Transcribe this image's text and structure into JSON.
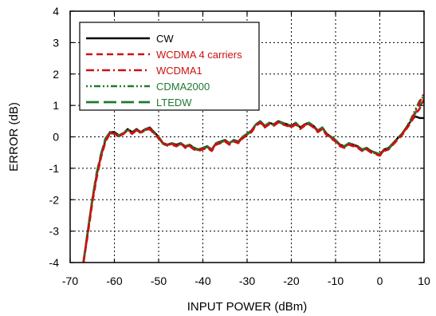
{
  "chart_data": {
    "type": "line",
    "title": "",
    "xlabel": "INPUT POWER (dBm)",
    "ylabel": "ERROR (dB)",
    "xlim": [
      -70,
      10
    ],
    "ylim": [
      -4,
      4
    ],
    "xticks": [
      "-70",
      "-60",
      "-50",
      "-40",
      "-30",
      "-20",
      "-10",
      "0",
      "10"
    ],
    "yticks": [
      "-4",
      "-3",
      "-2",
      "-1",
      "0",
      "1",
      "2",
      "3",
      "4"
    ],
    "grid": true,
    "legend_position": "top-left",
    "series": [
      {
        "name": "CW",
        "color": "#000000",
        "dash": "solid",
        "x": [
          -67,
          -66,
          -65,
          -64,
          -63,
          -62,
          -61,
          -60,
          -59,
          -58,
          -57,
          -56,
          -55,
          -54,
          -53,
          -52,
          -51,
          -50,
          -49,
          -48,
          -47,
          -46,
          -45,
          -44,
          -43,
          -42,
          -41,
          -40,
          -39,
          -38,
          -37,
          -36,
          -35,
          -34,
          -33,
          -32,
          -31,
          -30,
          -29,
          -28,
          -27,
          -26,
          -25,
          -24,
          -23,
          -22,
          -21,
          -20,
          -19,
          -18,
          -17,
          -16,
          -15,
          -14,
          -13,
          -12,
          -11,
          -10,
          -9,
          -8,
          -7,
          -6,
          -5,
          -4,
          -3,
          -2,
          -1,
          0,
          1,
          2,
          3,
          4,
          5,
          6,
          7,
          8,
          9,
          10
        ],
        "y": [
          -4.0,
          -3.0,
          -2.0,
          -1.2,
          -0.6,
          -0.1,
          0.15,
          0.15,
          0.05,
          0.1,
          0.25,
          0.15,
          0.25,
          0.15,
          0.25,
          0.3,
          0.15,
          0.0,
          -0.2,
          -0.25,
          -0.2,
          -0.25,
          -0.2,
          -0.3,
          -0.25,
          -0.35,
          -0.4,
          -0.35,
          -0.3,
          -0.4,
          -0.2,
          -0.15,
          -0.1,
          -0.2,
          -0.1,
          -0.15,
          0.0,
          0.1,
          0.2,
          0.4,
          0.5,
          0.35,
          0.45,
          0.4,
          0.5,
          0.45,
          0.4,
          0.35,
          0.45,
          0.3,
          0.4,
          0.45,
          0.35,
          0.2,
          0.3,
          0.1,
          0.0,
          -0.1,
          -0.25,
          -0.3,
          -0.2,
          -0.25,
          -0.3,
          -0.4,
          -0.35,
          -0.45,
          -0.5,
          -0.55,
          -0.4,
          -0.35,
          -0.2,
          -0.05,
          0.1,
          0.3,
          0.5,
          0.65,
          0.6,
          0.6
        ]
      },
      {
        "name": "WCDMA 4 carriers",
        "color": "#cc1111",
        "dash": "dashed",
        "x": [
          -67,
          -66,
          -65,
          -64,
          -63,
          -62,
          -61,
          -60,
          -59,
          -58,
          -57,
          -56,
          -55,
          -54,
          -53,
          -52,
          -51,
          -50,
          -49,
          -48,
          -47,
          -46,
          -45,
          -44,
          -43,
          -42,
          -41,
          -40,
          -39,
          -38,
          -37,
          -36,
          -35,
          -34,
          -33,
          -32,
          -31,
          -30,
          -29,
          -28,
          -27,
          -26,
          -25,
          -24,
          -23,
          -22,
          -21,
          -20,
          -19,
          -18,
          -17,
          -16,
          -15,
          -14,
          -13,
          -12,
          -11,
          -10,
          -9,
          -8,
          -7,
          -6,
          -5,
          -4,
          -3,
          -2,
          -1,
          0,
          1,
          2,
          3,
          4,
          5,
          6,
          7,
          8,
          9,
          10
        ],
        "y": [
          -4.0,
          -3.1,
          -2.1,
          -1.3,
          -0.65,
          -0.15,
          0.1,
          0.1,
          0.0,
          0.1,
          0.2,
          0.1,
          0.2,
          0.15,
          0.2,
          0.25,
          0.1,
          -0.05,
          -0.2,
          -0.25,
          -0.25,
          -0.3,
          -0.2,
          -0.35,
          -0.3,
          -0.4,
          -0.45,
          -0.4,
          -0.35,
          -0.45,
          -0.25,
          -0.2,
          -0.15,
          -0.25,
          -0.15,
          -0.2,
          -0.05,
          0.05,
          0.15,
          0.35,
          0.45,
          0.3,
          0.4,
          0.35,
          0.45,
          0.4,
          0.35,
          0.3,
          0.4,
          0.25,
          0.35,
          0.4,
          0.3,
          0.15,
          0.25,
          0.05,
          -0.05,
          -0.15,
          -0.3,
          -0.35,
          -0.25,
          -0.3,
          -0.35,
          -0.45,
          -0.4,
          -0.5,
          -0.55,
          -0.6,
          -0.45,
          -0.4,
          -0.25,
          -0.1,
          0.05,
          0.25,
          0.45,
          0.7,
          0.9,
          1.2
        ]
      },
      {
        "name": "WCDMA1",
        "color": "#cc1111",
        "dash": "dashdot",
        "x": [
          -67,
          -66,
          -65,
          -64,
          -63,
          -62,
          -61,
          -60,
          -59,
          -58,
          -57,
          -56,
          -55,
          -54,
          -53,
          -52,
          -51,
          -50,
          -49,
          -48,
          -47,
          -46,
          -45,
          -44,
          -43,
          -42,
          -41,
          -40,
          -39,
          -38,
          -37,
          -36,
          -35,
          -34,
          -33,
          -32,
          -31,
          -30,
          -29,
          -28,
          -27,
          -26,
          -25,
          -24,
          -23,
          -22,
          -21,
          -20,
          -19,
          -18,
          -17,
          -16,
          -15,
          -14,
          -13,
          -12,
          -11,
          -10,
          -9,
          -8,
          -7,
          -6,
          -5,
          -4,
          -3,
          -2,
          -1,
          0,
          1,
          2,
          3,
          4,
          5,
          6,
          7,
          8,
          9,
          10
        ],
        "y": [
          -4.0,
          -3.05,
          -2.05,
          -1.25,
          -0.6,
          -0.1,
          0.12,
          0.12,
          0.02,
          0.08,
          0.22,
          0.12,
          0.22,
          0.12,
          0.22,
          0.28,
          0.12,
          -0.02,
          -0.22,
          -0.28,
          -0.22,
          -0.28,
          -0.22,
          -0.32,
          -0.28,
          -0.38,
          -0.42,
          -0.38,
          -0.32,
          -0.42,
          -0.22,
          -0.18,
          -0.12,
          -0.22,
          -0.12,
          -0.18,
          -0.02,
          0.08,
          0.18,
          0.38,
          0.48,
          0.32,
          0.42,
          0.38,
          0.48,
          0.42,
          0.38,
          0.32,
          0.42,
          0.28,
          0.38,
          0.42,
          0.32,
          0.18,
          0.28,
          0.08,
          -0.02,
          -0.12,
          -0.28,
          -0.32,
          -0.22,
          -0.28,
          -0.32,
          -0.42,
          -0.38,
          -0.48,
          -0.52,
          -0.58,
          -0.42,
          -0.38,
          -0.22,
          -0.08,
          0.08,
          0.28,
          0.5,
          0.8,
          1.1,
          1.4
        ]
      },
      {
        "name": "CDMA2000",
        "color": "#1f7a2e",
        "dash": "dashdotdot",
        "x": [
          -67,
          -66,
          -65,
          -64,
          -63,
          -62,
          -61,
          -60,
          -59,
          -58,
          -57,
          -56,
          -55,
          -54,
          -53,
          -52,
          -51,
          -50,
          -49,
          -48,
          -47,
          -46,
          -45,
          -44,
          -43,
          -42,
          -41,
          -40,
          -39,
          -38,
          -37,
          -36,
          -35,
          -34,
          -33,
          -32,
          -31,
          -30,
          -29,
          -28,
          -27,
          -26,
          -25,
          -24,
          -23,
          -22,
          -21,
          -20,
          -19,
          -18,
          -17,
          -16,
          -15,
          -14,
          -13,
          -12,
          -11,
          -10,
          -9,
          -8,
          -7,
          -6,
          -5,
          -4,
          -3,
          -2,
          -1,
          0,
          1,
          2,
          3,
          4,
          5,
          6,
          7,
          8,
          9,
          10
        ],
        "y": [
          -4.0,
          -3.0,
          -2.0,
          -1.2,
          -0.55,
          -0.05,
          0.15,
          0.12,
          0.05,
          0.12,
          0.25,
          0.12,
          0.25,
          0.15,
          0.25,
          0.28,
          0.15,
          0.0,
          -0.2,
          -0.25,
          -0.2,
          -0.28,
          -0.2,
          -0.3,
          -0.25,
          -0.35,
          -0.4,
          -0.35,
          -0.3,
          -0.4,
          -0.2,
          -0.15,
          -0.1,
          -0.2,
          -0.1,
          -0.15,
          0.0,
          0.1,
          0.2,
          0.4,
          0.5,
          0.35,
          0.45,
          0.4,
          0.5,
          0.45,
          0.4,
          0.35,
          0.45,
          0.3,
          0.4,
          0.45,
          0.35,
          0.2,
          0.3,
          0.1,
          0.0,
          -0.1,
          -0.25,
          -0.3,
          -0.2,
          -0.25,
          -0.3,
          -0.4,
          -0.35,
          -0.45,
          -0.5,
          -0.55,
          -0.4,
          -0.35,
          -0.2,
          -0.05,
          0.1,
          0.3,
          0.55,
          0.85,
          1.15,
          1.3
        ]
      },
      {
        "name": "LTEDW",
        "color": "#1f7a2e",
        "dash": "longdash",
        "x": [
          -67,
          -66,
          -65,
          -64,
          -63,
          -62,
          -61,
          -60,
          -59,
          -58,
          -57,
          -56,
          -55,
          -54,
          -53,
          -52,
          -51,
          -50,
          -49,
          -48,
          -47,
          -46,
          -45,
          -44,
          -43,
          -42,
          -41,
          -40,
          -39,
          -38,
          -37,
          -36,
          -35,
          -34,
          -33,
          -32,
          -31,
          -30,
          -29,
          -28,
          -27,
          -26,
          -25,
          -24,
          -23,
          -22,
          -21,
          -20,
          -19,
          -18,
          -17,
          -16,
          -15,
          -14,
          -13,
          -12,
          -11,
          -10,
          -9,
          -8,
          -7,
          -6,
          -5,
          -4,
          -3,
          -2,
          -1,
          0,
          1,
          2,
          3,
          4,
          5,
          6,
          7,
          8,
          9,
          10
        ],
        "y": [
          -4.0,
          -3.0,
          -2.0,
          -1.15,
          -0.55,
          -0.05,
          0.12,
          0.1,
          0.02,
          0.1,
          0.22,
          0.1,
          0.22,
          0.12,
          0.22,
          0.25,
          0.12,
          -0.02,
          -0.22,
          -0.28,
          -0.22,
          -0.3,
          -0.22,
          -0.32,
          -0.28,
          -0.38,
          -0.42,
          -0.38,
          -0.32,
          -0.42,
          -0.22,
          -0.18,
          -0.12,
          -0.22,
          -0.12,
          -0.18,
          -0.02,
          0.08,
          0.18,
          0.38,
          0.48,
          0.32,
          0.42,
          0.38,
          0.48,
          0.42,
          0.38,
          0.32,
          0.42,
          0.28,
          0.38,
          0.42,
          0.32,
          0.18,
          0.28,
          0.08,
          -0.02,
          -0.12,
          -0.28,
          -0.32,
          -0.22,
          -0.28,
          -0.32,
          -0.42,
          -0.38,
          -0.48,
          -0.52,
          -0.58,
          -0.42,
          -0.38,
          -0.22,
          -0.08,
          0.08,
          0.28,
          0.5,
          0.75,
          1.0,
          1.15
        ]
      }
    ]
  }
}
